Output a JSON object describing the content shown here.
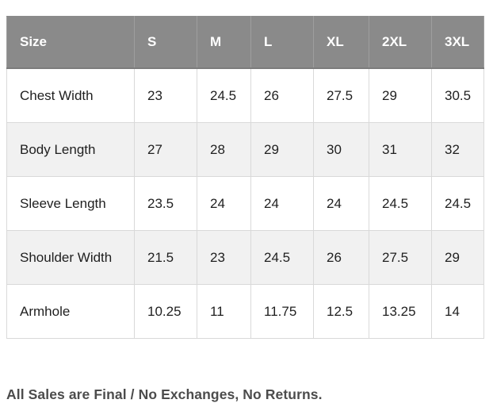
{
  "size_chart": {
    "columns": [
      "Size",
      "S",
      "M",
      "L",
      "XL",
      "2XL",
      "3XL"
    ],
    "rows": [
      {
        "label": "Chest Width",
        "values": [
          "23",
          "24.5",
          "26",
          "27.5",
          "29",
          "30.5"
        ]
      },
      {
        "label": "Body Length",
        "values": [
          "27",
          "28",
          "29",
          "30",
          "31",
          "32"
        ]
      },
      {
        "label": "Sleeve Length",
        "values": [
          "23.5",
          "24",
          "24",
          "24",
          "24.5",
          "24.5"
        ]
      },
      {
        "label": "Shoulder Width",
        "values": [
          "21.5",
          "23",
          "24.5",
          "26",
          "27.5",
          "29"
        ]
      },
      {
        "label": "Armhole",
        "values": [
          "10.25",
          "11",
          "11.75",
          "12.5",
          "13.25",
          "14"
        ]
      }
    ]
  },
  "footer": {
    "note": "All Sales are Final / No Exchanges, No Returns."
  },
  "colors": {
    "header_bg": "#8a8a8a",
    "header_text": "#ffffff",
    "row_alt_bg": "#f1f1f1",
    "cell_border": "#d9d9d9",
    "note_text": "#4c4c4c"
  }
}
